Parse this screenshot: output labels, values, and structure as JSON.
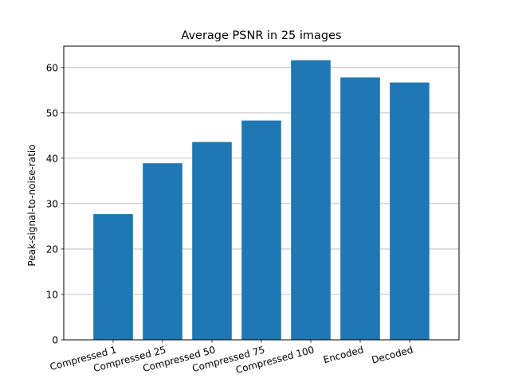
{
  "chart_data": {
    "type": "bar",
    "title": "Average PSNR in 25 images",
    "xlabel": "",
    "ylabel": "Peak-signal-to-noise-ratio",
    "categories": [
      "Compressed 1",
      "Compressed 25",
      "Compressed 50",
      "Compressed 75",
      "Compressed 100",
      "Encoded",
      "Decoded"
    ],
    "values": [
      27.7,
      38.9,
      43.6,
      48.3,
      61.6,
      57.8,
      56.7
    ],
    "ylim": [
      0,
      64.7
    ],
    "yticks": [
      0,
      10,
      20,
      30,
      40,
      50,
      60
    ],
    "grid": "y",
    "legend": "none",
    "bar_color": "#1f77b4"
  }
}
